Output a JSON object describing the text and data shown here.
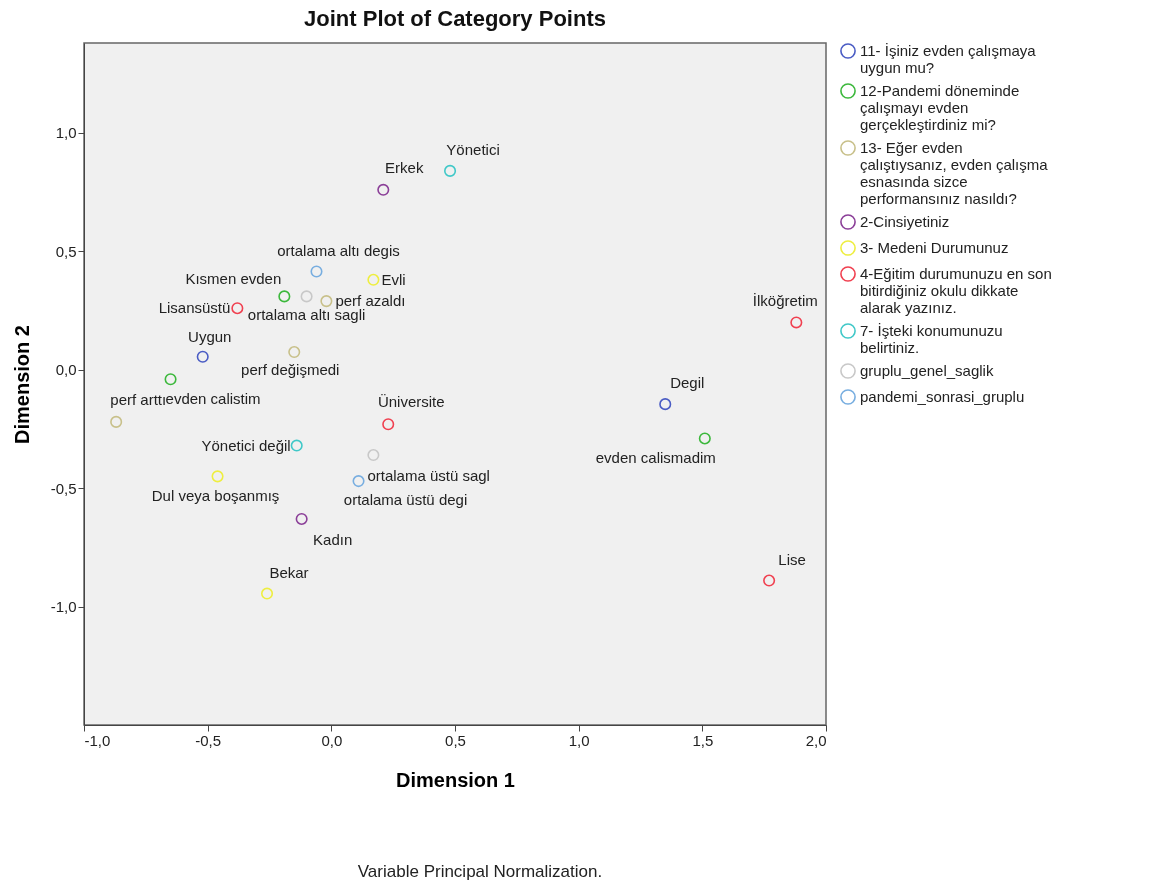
{
  "chart_data": {
    "type": "scatter",
    "title": "Joint Plot of Category Points",
    "xlabel": "Dimension 1",
    "ylabel": "Dimension 2",
    "annotations": [
      "Variable Principal Normalization."
    ],
    "xlim": [
      -1,
      2
    ],
    "ylim": [
      -1.5,
      1.38
    ],
    "xticks": [
      {
        "value": -1,
        "label": "-1,0"
      },
      {
        "value": -0.5,
        "label": "-0,5"
      },
      {
        "value": 0,
        "label": "0,0"
      },
      {
        "value": 0.5,
        "label": "0,5"
      },
      {
        "value": 1,
        "label": "1,0"
      },
      {
        "value": 1.5,
        "label": "1,5"
      },
      {
        "value": 2,
        "label": "2,0"
      }
    ],
    "yticks": [
      {
        "value": -1,
        "label": "-1,0"
      },
      {
        "value": -0.5,
        "label": "-0,5"
      },
      {
        "value": 0,
        "label": "0,0"
      },
      {
        "value": 0.5,
        "label": "0,5"
      },
      {
        "value": 1,
        "label": "1,0"
      }
    ],
    "grid": false,
    "legend": "right",
    "marker": "circle",
    "series": [
      {
        "name": "11- İşiniz evden çalışmaya uygun mu?",
        "color": "#4a5cc4",
        "x": [
          -0.52,
          1.35
        ],
        "values": [
          0.055,
          -0.145
        ],
        "value_labels": [
          "Uygun",
          "Degil"
        ]
      },
      {
        "name": "12-Pandemi döneminde çalışmayı evden gerçekleştirdiniz mi?",
        "color": "#3cb83c",
        "x": [
          -0.19,
          -0.65,
          1.51
        ],
        "values": [
          0.31,
          -0.04,
          -0.29
        ],
        "value_labels": [
          "Kısmen evden",
          "evden calistim",
          "evden calismadim"
        ]
      },
      {
        "name": "13- Eğer evden çalıştıysanız, evden çalışma esnasında sizce performansınız nasıldı?",
        "color": "#c8c08a",
        "x": [
          -0.02,
          -0.15,
          -0.87
        ],
        "values": [
          0.29,
          0.075,
          -0.22
        ],
        "value_labels": [
          "perf azaldı",
          "perf değişmedi",
          "perf arttı"
        ]
      },
      {
        "name": "2-Cinsiyetiniz",
        "color": "#8b3f98",
        "x": [
          0.21,
          -0.12
        ],
        "values": [
          0.76,
          -0.63
        ],
        "value_labels": [
          "Erkek",
          "Kadın"
        ]
      },
      {
        "name": "3- Medeni Durumunuz",
        "color": "#eeee40",
        "x": [
          0.17,
          -0.46,
          -0.26
        ],
        "values": [
          0.38,
          -0.45,
          -0.945
        ],
        "value_labels": [
          "Evli",
          "Dul veya boşanmış",
          "Bekar"
        ]
      },
      {
        "name": "4-Eğitim durumunuzu en son bitirdiğiniz okulu dikkate alarak yazınız.",
        "color": "#f04050",
        "x": [
          -0.38,
          1.88,
          0.23,
          1.77
        ],
        "values": [
          0.26,
          0.2,
          -0.23,
          -0.89
        ],
        "value_labels": [
          "Lisansüstü",
          "İlköğretim",
          "Üniversite",
          "Lise"
        ]
      },
      {
        "name": "7- İşteki konumunuzu belirtiniz.",
        "color": "#40c8c8",
        "x": [
          0.48,
          -0.14
        ],
        "values": [
          0.84,
          -0.32
        ],
        "value_labels": [
          "Yönetici",
          "Yönetici değil"
        ]
      },
      {
        "name": "gruplu_genel_saglik",
        "color": "#c8c8c8",
        "x": [
          -0.1,
          0.17
        ],
        "values": [
          0.31,
          -0.36
        ],
        "value_labels": [
          "ortalama altı sagli",
          "ortalama üstü sagl"
        ]
      },
      {
        "name": "pandemi_sonrasi_gruplu",
        "color": "#78aee0",
        "x": [
          -0.06,
          0.11
        ],
        "values": [
          0.415,
          -0.47
        ],
        "value_labels": [
          "ortalama altı degis",
          "ortalama üstü degi"
        ]
      }
    ]
  }
}
